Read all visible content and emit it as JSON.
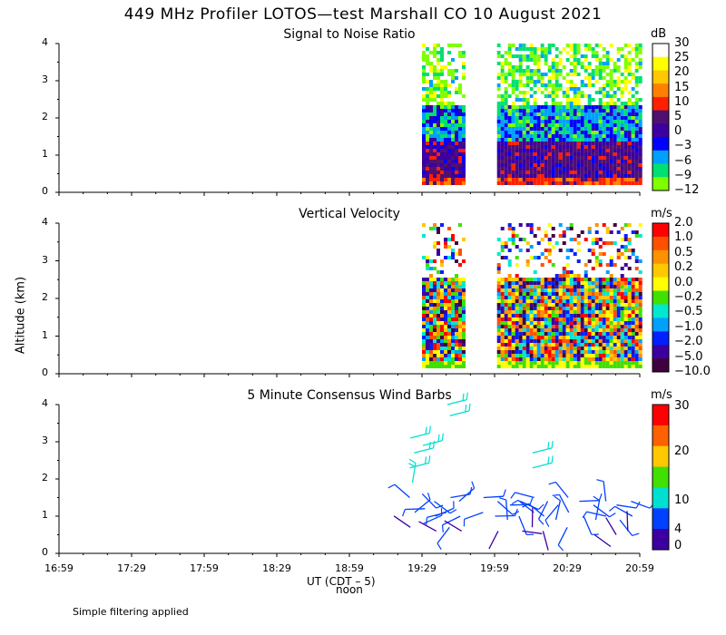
{
  "title": "449 MHz Profiler LOTOS—test Marshall CO 10 August 2021",
  "y_axis_label": "Altitude (km)",
  "x_axis_label": "UT  (CDT – 5)",
  "x_axis_sublabel": "noon",
  "footnote": "Simple filtering applied",
  "chart_data": [
    {
      "type": "heatmap",
      "title": "Signal to Noise Ratio",
      "unit": "dB",
      "ylabel": "Altitude (km)",
      "ylim": [
        0,
        4
      ],
      "yticks": [
        "0",
        "1",
        "2",
        "3",
        "4"
      ],
      "xticks": [
        "16:59",
        "17:29",
        "17:59",
        "18:29",
        "18:59",
        "19:29",
        "19:59",
        "20:29",
        "20:59"
      ],
      "colorbar_labels": [
        "30",
        "25",
        "20",
        "15",
        "10",
        "5",
        "0",
        "−3",
        "−6",
        "−9",
        "−12"
      ],
      "colorbar_colors": [
        "#ffffff",
        "#ffff00",
        "#ffc800",
        "#ff8000",
        "#ff2000",
        "#501070",
        "#3c00a0",
        "#0000ff",
        "#00a0ff",
        "#00e070",
        "#80ff00"
      ],
      "data_segments": [
        {
          "start": "19:29",
          "end": "19:47",
          "alt_min": 0.2,
          "alt_max": 4.0
        },
        {
          "start": "20:00",
          "end": "20:59",
          "alt_min": 0.2,
          "alt_max": 4.0
        }
      ],
      "profile_description": [
        {
          "alt": 0.3,
          "value": 10
        },
        {
          "alt": 1.0,
          "value": 0
        },
        {
          "alt": 2.0,
          "value": -6
        },
        {
          "alt": 3.5,
          "value": 30
        }
      ]
    },
    {
      "type": "heatmap",
      "title": "Vertical Velocity",
      "unit": "m/s",
      "ylim": [
        0,
        4
      ],
      "yticks": [
        "0",
        "1",
        "2",
        "3",
        "4"
      ],
      "xticks": [
        "16:59",
        "17:29",
        "17:59",
        "18:29",
        "18:59",
        "19:29",
        "19:59",
        "20:29",
        "20:59"
      ],
      "colorbar_labels": [
        "2.0",
        "1.0",
        "0.5",
        "0.2",
        "0.0",
        "−0.2",
        "−0.5",
        "−1.0",
        "−2.0",
        "−5.0",
        "−10.0"
      ],
      "colorbar_colors": [
        "#ff0000",
        "#ff5000",
        "#ff9000",
        "#ffc800",
        "#ffff00",
        "#40e000",
        "#00e8d0",
        "#00a0ff",
        "#0020ff",
        "#3c00a0",
        "#400040"
      ],
      "data_segments": [
        {
          "start": "19:29",
          "end": "19:47",
          "alt_min": 0.2,
          "alt_max": 4.0
        },
        {
          "start": "20:00",
          "end": "20:59",
          "alt_min": 0.2,
          "alt_max": 4.0
        }
      ]
    },
    {
      "type": "scatter",
      "title": "5 Minute Consensus Wind Barbs",
      "unit": "m/s",
      "ylim": [
        0,
        4
      ],
      "yticks": [
        "0",
        "1",
        "2",
        "3",
        "4"
      ],
      "xticks": [
        "16:59",
        "17:29",
        "17:59",
        "18:29",
        "18:59",
        "19:29",
        "19:59",
        "20:29",
        "20:59"
      ],
      "colorbar_labels": [
        "30",
        "20",
        "10",
        "4",
        "0"
      ],
      "colorbar_values": [
        30,
        20,
        10,
        4,
        0
      ],
      "colorbar_colors": [
        "#ff0000",
        "#ff6000",
        "#ffc800",
        "#40e000",
        "#00e0d0",
        "#0040ff",
        "#3c00a0"
      ],
      "barbs": [
        {
          "time": "19:25",
          "alt": 3.1,
          "speed": 12
        },
        {
          "time": "19:25",
          "alt": 2.7,
          "speed": 11
        },
        {
          "time": "19:25",
          "alt": 2.3,
          "speed": 9
        },
        {
          "time": "19:25",
          "alt": 1.9,
          "speed": 8
        },
        {
          "time": "19:25",
          "alt": 1.5,
          "speed": 6
        },
        {
          "time": "19:25",
          "alt": 1.1,
          "speed": 3
        },
        {
          "time": "19:25",
          "alt": 0.7,
          "speed": 2
        },
        {
          "time": "19:30",
          "alt": 2.9,
          "speed": 12
        },
        {
          "time": "19:30",
          "alt": 1.6,
          "speed": 5
        },
        {
          "time": "19:30",
          "alt": 1.2,
          "speed": 4
        },
        {
          "time": "19:30",
          "alt": 0.8,
          "speed": 3
        },
        {
          "time": "19:35",
          "alt": 1.4,
          "speed": 5
        },
        {
          "time": "19:35",
          "alt": 1.0,
          "speed": 4
        },
        {
          "time": "19:35",
          "alt": 0.6,
          "speed": 2
        },
        {
          "time": "19:40",
          "alt": 4.0,
          "speed": 12
        },
        {
          "time": "19:40",
          "alt": 3.7,
          "speed": 12
        },
        {
          "time": "19:40",
          "alt": 1.5,
          "speed": 5
        },
        {
          "time": "19:40",
          "alt": 1.1,
          "speed": 4
        },
        {
          "time": "19:40",
          "alt": 0.7,
          "speed": 3
        },
        {
          "time": "19:45",
          "alt": 1.4,
          "speed": 5
        },
        {
          "time": "19:45",
          "alt": 1.0,
          "speed": 4
        },
        {
          "time": "19:45",
          "alt": 0.6,
          "speed": 2
        },
        {
          "time": "19:55",
          "alt": 1.5,
          "speed": 6
        },
        {
          "time": "19:55",
          "alt": 1.1,
          "speed": 4
        },
        {
          "time": "20:00",
          "alt": 1.4,
          "speed": 5
        },
        {
          "time": "20:00",
          "alt": 1.0,
          "speed": 3
        },
        {
          "time": "20:00",
          "alt": 0.6,
          "speed": 2
        },
        {
          "time": "20:05",
          "alt": 1.3,
          "speed": 5
        },
        {
          "time": "20:05",
          "alt": 0.9,
          "speed": 3
        },
        {
          "time": "20:10",
          "alt": 1.4,
          "speed": 4
        },
        {
          "time": "20:10",
          "alt": 1.0,
          "speed": 3
        },
        {
          "time": "20:10",
          "alt": 0.6,
          "speed": 2
        },
        {
          "time": "20:15",
          "alt": 2.7,
          "speed": 10
        },
        {
          "time": "20:15",
          "alt": 2.3,
          "speed": 9
        },
        {
          "time": "20:15",
          "alt": 1.5,
          "speed": 5
        },
        {
          "time": "20:15",
          "alt": 1.1,
          "speed": 3
        },
        {
          "time": "20:15",
          "alt": 0.7,
          "speed": 2
        },
        {
          "time": "20:20",
          "alt": 1.4,
          "speed": 4
        },
        {
          "time": "20:20",
          "alt": 1.0,
          "speed": 3
        },
        {
          "time": "20:20",
          "alt": 0.6,
          "speed": 2
        },
        {
          "time": "20:25",
          "alt": 1.3,
          "speed": 4
        },
        {
          "time": "20:25",
          "alt": 0.9,
          "speed": 3
        },
        {
          "time": "20:30",
          "alt": 1.5,
          "speed": 5
        },
        {
          "time": "20:30",
          "alt": 1.1,
          "speed": 4
        },
        {
          "time": "20:30",
          "alt": 0.7,
          "speed": 3
        },
        {
          "time": "20:35",
          "alt": 1.4,
          "speed": 4
        },
        {
          "time": "20:35",
          "alt": 1.0,
          "speed": 3
        },
        {
          "time": "20:40",
          "alt": 1.3,
          "speed": 5
        },
        {
          "time": "20:40",
          "alt": 0.9,
          "speed": 4
        },
        {
          "time": "20:40",
          "alt": 0.5,
          "speed": 2
        },
        {
          "time": "20:45",
          "alt": 1.4,
          "speed": 4
        },
        {
          "time": "20:45",
          "alt": 1.0,
          "speed": 3
        },
        {
          "time": "20:50",
          "alt": 1.3,
          "speed": 5
        },
        {
          "time": "20:50",
          "alt": 0.9,
          "speed": 3
        },
        {
          "time": "20:50",
          "alt": 0.5,
          "speed": 2
        },
        {
          "time": "20:55",
          "alt": 1.4,
          "speed": 4
        },
        {
          "time": "20:55",
          "alt": 1.0,
          "speed": 3
        },
        {
          "time": "20:55",
          "alt": 0.6,
          "speed": 2
        }
      ]
    }
  ]
}
